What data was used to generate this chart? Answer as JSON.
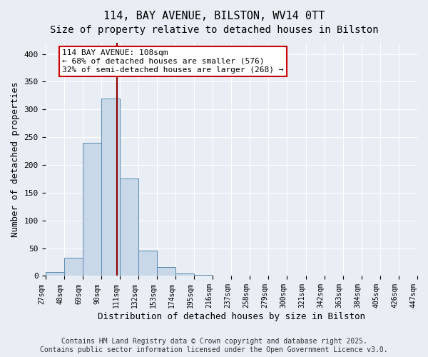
{
  "title": "114, BAY AVENUE, BILSTON, WV14 0TT",
  "subtitle": "Size of property relative to detached houses in Bilston",
  "xlabel": "Distribution of detached houses by size in Bilston",
  "ylabel": "Number of detached properties",
  "bar_values": [
    7,
    33,
    240,
    320,
    175,
    45,
    16,
    4,
    2,
    1,
    1,
    1,
    0,
    0,
    0,
    0,
    0,
    1,
    0,
    0
  ],
  "bin_edges": [
    27,
    48,
    69,
    90,
    111,
    132,
    153,
    174,
    195,
    216,
    237,
    258,
    279,
    300,
    321,
    342,
    363,
    384,
    405,
    426,
    447
  ],
  "tick_labels": [
    "27sqm",
    "48sqm",
    "69sqm",
    "90sqm",
    "111sqm",
    "132sqm",
    "153sqm",
    "174sqm",
    "195sqm",
    "216sqm",
    "237sqm",
    "258sqm",
    "279sqm",
    "300sqm",
    "321sqm",
    "342sqm",
    "363sqm",
    "384sqm",
    "405sqm",
    "426sqm",
    "447sqm"
  ],
  "bar_color": "#c8d8e8",
  "bar_edge_color": "#5a8ab0",
  "property_line_x": 108,
  "property_line_color": "#8b0000",
  "annotation_text": "114 BAY AVENUE: 108sqm\n← 68% of detached houses are smaller (576)\n32% of semi-detached houses are larger (268) →",
  "annotation_box_color": "#ffffff",
  "annotation_box_edge_color": "#cc0000",
  "ylim": [
    0,
    420
  ],
  "background_color": "#e8eef4",
  "plot_background_color": "#e8eef4",
  "footer_text": "Contains HM Land Registry data © Crown copyright and database right 2025.\nContains public sector information licensed under the Open Government Licence v3.0.",
  "title_fontsize": 11,
  "subtitle_fontsize": 10,
  "axis_label_fontsize": 9,
  "tick_fontsize": 7,
  "annotation_fontsize": 8,
  "footer_fontsize": 7,
  "yticks": [
    0,
    50,
    100,
    150,
    200,
    250,
    300,
    350,
    400
  ]
}
